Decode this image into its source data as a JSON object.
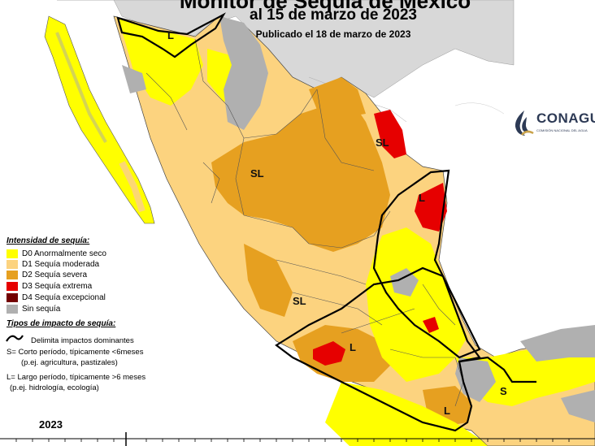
{
  "header": {
    "title": "Monitor de Sequía de México",
    "date_line": "al 15 de marzo de 2023",
    "published": "Publicado el 18 de marzo de 2023"
  },
  "logo": {
    "name": "CONAGUA",
    "subtitle": "COMISIÓN NACIONAL DEL AGUA"
  },
  "legend": {
    "intensity_title": "Intensidad de sequía:",
    "intensity_items": [
      {
        "label": "D0 Anormalmente seco",
        "color": "#ffff00"
      },
      {
        "label": "D1 Sequía moderada",
        "color": "#fcd37f"
      },
      {
        "label": "D2 Sequía severa",
        "color": "#e6a020"
      },
      {
        "label": "D3 Sequía extrema",
        "color": "#e60000"
      },
      {
        "label": "D4 Sequía excepcional",
        "color": "#730000"
      },
      {
        "label": "Sin sequía",
        "color": "#b0b0b0"
      }
    ],
    "impact_title": "Tipos de impacto de sequía:",
    "impact_boundary": "Delimita impactos dominantes",
    "impact_short": "S= Corto período, típicamente <6meses",
    "impact_short_example": "(p.ej. agricultura, pastizales)",
    "impact_long": "L= Largo período, típicamente >6 meses",
    "impact_long_example": "(p.ej. hidrología, ecología)"
  },
  "map_labels": [
    "L",
    "SL",
    "SL",
    "L",
    "SL",
    "L",
    "L",
    "S"
  ],
  "timeline": {
    "year": "2023"
  }
}
